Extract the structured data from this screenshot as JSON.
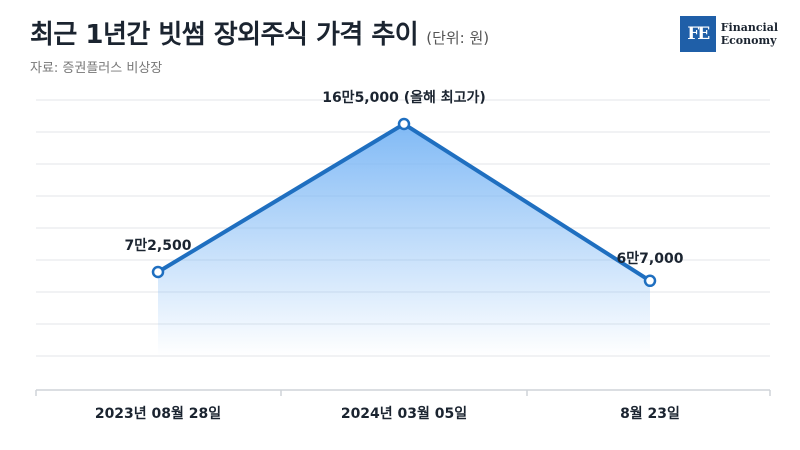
{
  "header": {
    "title": "최근 1년간 빗썸 장외주식 가격 추이",
    "unit": "(단위: 원)",
    "source": "자료: 증권플러스 비상장"
  },
  "logo": {
    "mark": "FE",
    "line1": "Financial",
    "line2": "Economy"
  },
  "colors": {
    "line": "#1f6fc0",
    "fill_top": "#7ab6f5",
    "grid": "#e3e6ea",
    "axis": "#cfd3d8"
  },
  "chart_data": {
    "type": "area",
    "categories": [
      "2023년 08월 28일",
      "2024년 03월 05일",
      "8월 23일"
    ],
    "values": [
      72500,
      165000,
      67000
    ],
    "data_labels": [
      "7만2,500",
      "16만5,000 (올해 최고가)",
      "6만7,000"
    ],
    "grid": true
  }
}
